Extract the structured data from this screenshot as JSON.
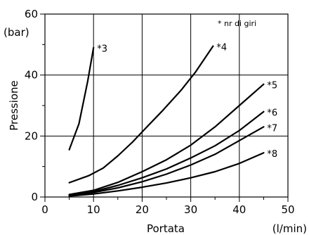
{
  "chart_data": {
    "type": "line",
    "title": "",
    "xlabel": "Portata",
    "xunit": "(l/min)",
    "ylabel": "Pressione",
    "yunit": "(bar)",
    "xlim": [
      0,
      50
    ],
    "ylim": [
      0,
      60
    ],
    "xticks": [
      0,
      10,
      20,
      30,
      40,
      50
    ],
    "yticks": [
      0,
      20,
      40,
      60
    ],
    "xgrid": [
      10,
      20,
      30,
      40
    ],
    "ygrid": [
      20,
      40
    ],
    "annotation": "* nr di giri",
    "series": [
      {
        "name": "*3",
        "points": [
          [
            5,
            15.5
          ],
          [
            7,
            24
          ],
          [
            8.8,
            38
          ],
          [
            10,
            49
          ]
        ]
      },
      {
        "name": "*4",
        "points": [
          [
            5,
            4.7
          ],
          [
            9,
            7
          ],
          [
            12,
            9.5
          ],
          [
            15,
            13.5
          ],
          [
            18,
            18
          ],
          [
            21,
            23
          ],
          [
            24,
            28
          ],
          [
            28,
            35
          ],
          [
            31,
            41
          ],
          [
            34.6,
            49.5
          ]
        ]
      },
      {
        "name": "*5",
        "points": [
          [
            5,
            0.8
          ],
          [
            10,
            2.2
          ],
          [
            15,
            4.8
          ],
          [
            20,
            8.3
          ],
          [
            25,
            12.2
          ],
          [
            30,
            17
          ],
          [
            35,
            23
          ],
          [
            40,
            30
          ],
          [
            45,
            37
          ]
        ]
      },
      {
        "name": "*6",
        "points": [
          [
            5,
            0.6
          ],
          [
            10,
            1.8
          ],
          [
            15,
            3.8
          ],
          [
            20,
            6.3
          ],
          [
            25,
            9.2
          ],
          [
            30,
            12.8
          ],
          [
            35,
            16.8
          ],
          [
            40,
            21.8
          ],
          [
            45,
            28
          ]
        ]
      },
      {
        "name": "*7",
        "points": [
          [
            5,
            0.5
          ],
          [
            10,
            1.5
          ],
          [
            15,
            3
          ],
          [
            20,
            5
          ],
          [
            25,
            7.5
          ],
          [
            30,
            10.5
          ],
          [
            35,
            14
          ],
          [
            40,
            18.5
          ],
          [
            45,
            23
          ]
        ]
      },
      {
        "name": "*8",
        "points": [
          [
            5,
            0.3
          ],
          [
            10,
            1
          ],
          [
            15,
            2
          ],
          [
            20,
            3.2
          ],
          [
            25,
            4.6
          ],
          [
            30,
            6.3
          ],
          [
            35,
            8.3
          ],
          [
            40,
            11
          ],
          [
            45,
            14.5
          ]
        ]
      }
    ]
  }
}
